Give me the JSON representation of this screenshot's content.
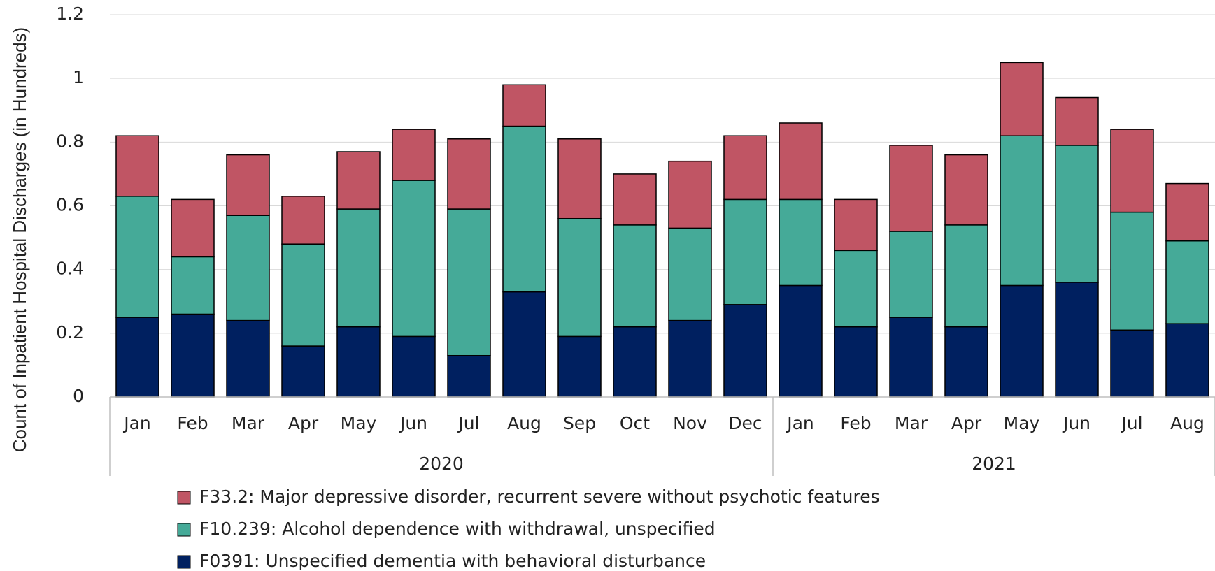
{
  "chart_data": {
    "type": "stacked_bar",
    "y_label": "Count of Inpatient Hospital Discharges (in Hundreds)",
    "groups": [
      {
        "label": "2020",
        "categories": [
          "Jan",
          "Feb",
          "Mar",
          "Apr",
          "May",
          "Jun",
          "Jul",
          "Aug",
          "Sep",
          "Oct",
          "Nov",
          "Dec"
        ]
      },
      {
        "label": "2021",
        "categories": [
          "Jan",
          "Feb",
          "Mar",
          "Apr",
          "May",
          "Jun",
          "Jul",
          "Aug"
        ]
      }
    ],
    "series": [
      {
        "name": "F0391: Unspecified dementia with behavioral disturbance",
        "color": "#002060",
        "values": [
          0.25,
          0.26,
          0.24,
          0.16,
          0.22,
          0.19,
          0.13,
          0.33,
          0.19,
          0.22,
          0.24,
          0.29,
          0.35,
          0.22,
          0.25,
          0.22,
          0.35,
          0.36,
          0.21,
          0.23
        ]
      },
      {
        "name": "F10.239: Alcohol dependence with withdrawal, unspecified",
        "color": "#45aa98",
        "values": [
          0.38,
          0.18,
          0.33,
          0.32,
          0.37,
          0.49,
          0.46,
          0.52,
          0.37,
          0.32,
          0.29,
          0.33,
          0.27,
          0.24,
          0.27,
          0.32,
          0.47,
          0.43,
          0.37,
          0.26
        ]
      },
      {
        "name": "F33.2: Major depressive disorder, recurrent severe without psychotic features",
        "color": "#c05564",
        "values": [
          0.19,
          0.18,
          0.19,
          0.15,
          0.18,
          0.16,
          0.22,
          0.13,
          0.25,
          0.16,
          0.21,
          0.2,
          0.24,
          0.16,
          0.27,
          0.22,
          0.23,
          0.15,
          0.26,
          0.18
        ]
      }
    ],
    "ylim": [
      0,
      1.2
    ],
    "yticks": [
      0,
      0.2,
      0.4,
      0.6,
      0.8,
      1,
      1.2
    ],
    "grid": true
  }
}
